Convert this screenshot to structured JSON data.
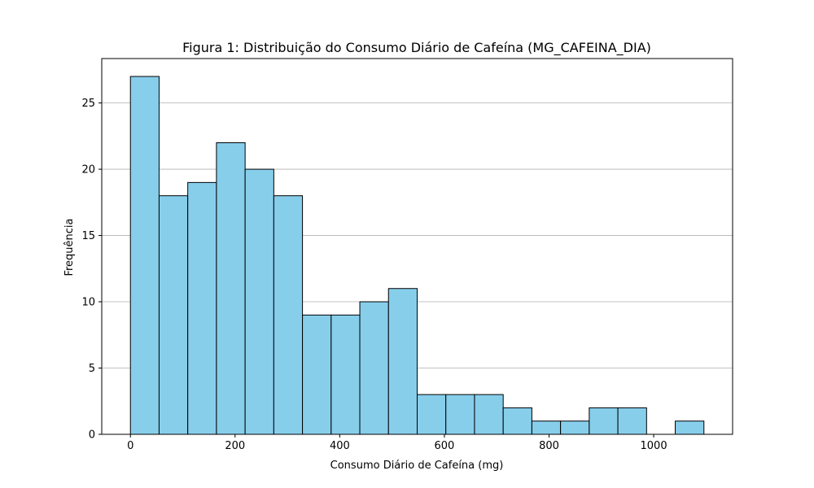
{
  "chart_data": {
    "type": "bar",
    "title": "Figura 1: Distribuição do Consumo Diário de Cafeína (MG_CAFEINA_DIA)",
    "xlabel": "Consumo Diário de Cafeína (mg)",
    "ylabel": "Frequência",
    "bin_edges": [
      0,
      54.8,
      109.6,
      164.4,
      219.2,
      274.0,
      328.8,
      383.6,
      438.4,
      493.2,
      548.0,
      602.8,
      657.6,
      712.4,
      767.2,
      822.0,
      876.8,
      931.6,
      986.4,
      1041.2,
      1096.0
    ],
    "values": [
      27,
      18,
      19,
      22,
      20,
      18,
      9,
      9,
      10,
      11,
      3,
      3,
      3,
      2,
      1,
      1,
      2,
      2,
      0,
      1
    ],
    "xlim": [
      -54.8,
      1150.8
    ],
    "ylim": [
      0,
      28.35
    ],
    "xticks": [
      0,
      200,
      400,
      600,
      800,
      1000
    ],
    "yticks": [
      0,
      5,
      10,
      15,
      20,
      25
    ],
    "bar_color": "#87ceeb",
    "edge_color": "#000000",
    "grid": "y-axis only",
    "grid_color": "#b0b0b0"
  }
}
